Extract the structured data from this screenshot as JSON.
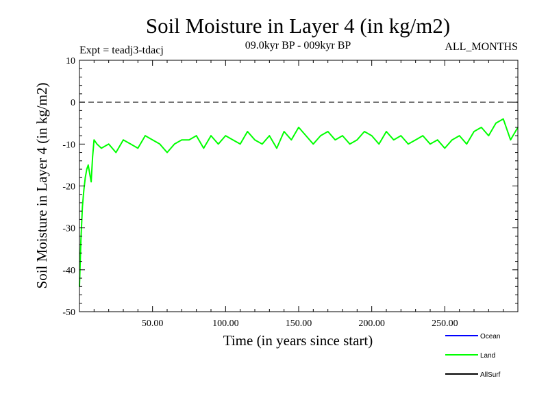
{
  "chart_data": {
    "type": "line",
    "title": "Soil Moisture in Layer 4 (in kg/m2)",
    "subtitle_left": "Expt = teadj3-tdacj",
    "subtitle_center": "09.0kyr BP - 009kyr BP",
    "subtitle_right": "ALL_MONTHS",
    "xlabel": "Time (in years since start)",
    "ylabel": "Soil Moisture in Layer 4 (in kg/m2)",
    "xlim": [
      0,
      300
    ],
    "ylim": [
      -50,
      10
    ],
    "x_ticks": [
      50,
      100,
      150,
      200,
      250
    ],
    "x_tick_labels": [
      "50.00",
      "100.00",
      "150.00",
      "200.00",
      "250.00"
    ],
    "y_ticks": [
      10,
      0,
      -10,
      -20,
      -30,
      -40,
      -50
    ],
    "y_tick_labels": [
      "10",
      "0",
      "-10",
      "-20",
      "-30",
      "-40",
      "-50"
    ],
    "reference_line": 0,
    "series": [
      {
        "name": "Ocean",
        "color": "#0000ff",
        "x": [],
        "y": []
      },
      {
        "name": "Land",
        "color": "#00ff00",
        "x": [
          0,
          1,
          2,
          3,
          4,
          5,
          6,
          7,
          8,
          9,
          10,
          12,
          15,
          20,
          25,
          30,
          35,
          40,
          45,
          50,
          55,
          60,
          65,
          70,
          75,
          80,
          85,
          90,
          95,
          100,
          105,
          110,
          115,
          120,
          125,
          130,
          135,
          140,
          145,
          150,
          155,
          160,
          165,
          170,
          175,
          180,
          185,
          190,
          195,
          200,
          205,
          210,
          215,
          220,
          225,
          230,
          235,
          240,
          245,
          250,
          255,
          260,
          265,
          270,
          275,
          280,
          285,
          290,
          295,
          300
        ],
        "y": [
          -44,
          -33,
          -25,
          -21,
          -18,
          -16,
          -15,
          -17,
          -19,
          -13,
          -9,
          -10,
          -11,
          -10,
          -12,
          -9,
          -10,
          -11,
          -8,
          -9,
          -10,
          -12,
          -10,
          -9,
          -9,
          -8,
          -11,
          -8,
          -10,
          -8,
          -9,
          -10,
          -7,
          -9,
          -10,
          -8,
          -11,
          -7,
          -9,
          -6,
          -8,
          -10,
          -8,
          -7,
          -9,
          -8,
          -10,
          -9,
          -7,
          -8,
          -10,
          -7,
          -9,
          -8,
          -10,
          -9,
          -8,
          -10,
          -9,
          -11,
          -9,
          -8,
          -10,
          -7,
          -6,
          -8,
          -5,
          -4,
          -9,
          -6
        ]
      },
      {
        "name": "AllSurf",
        "color": "#000000",
        "x": [],
        "y": []
      }
    ],
    "legend_position": "bottom-right"
  }
}
